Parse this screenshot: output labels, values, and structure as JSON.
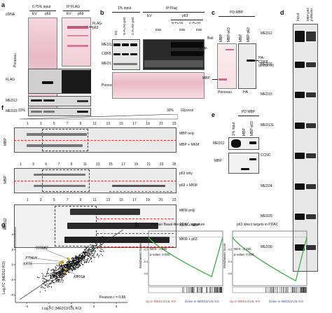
{
  "panel_labels": {
    "a": "a",
    "b": "b",
    "c": "c",
    "d": "d",
    "e": "e",
    "f": "f",
    "g": "g",
    "h": "h"
  },
  "a": {
    "cdna_label": "cDNA",
    "input_header": "0.75% input",
    "ipflag_header": "IP FLAG",
    "lanes_input": [
      "EV",
      "p63"
    ],
    "lanes_ip": [
      "EV",
      "p63"
    ],
    "flag_p63": "FLAG-\np63",
    "rows": [
      "Ponceau",
      "FLAG",
      "MED12",
      "MED23"
    ]
  },
  "b": {
    "input_header": "1% input",
    "ip_header": "IP Flag",
    "lanes_input": [
      "EV",
      "N-FLAG-p63",
      "C-FLAG-p63"
    ],
    "ev_label": "EV",
    "p63_label": "p63",
    "nflag": "N-FLAG",
    "cflag": "C-FLAG",
    "etbr": [
      "-",
      "EtBr",
      "-",
      "EtBr",
      "-",
      "EtBr"
    ],
    "rows": [
      "MED12",
      "CDK8",
      "MED1",
      "Ponceau"
    ]
  },
  "c": {
    "header": "PD MBP",
    "bait_label": "Bait",
    "lanes": [
      "MBP",
      "MBP-p63",
      "MBP",
      "MBP-p63"
    ],
    "mbp_p63": "MBP-\np63",
    "mbp": "MBP",
    "ha_cdk8": "HA-\nCDK8\n(knock-in)",
    "bottom": [
      "Ponceau",
      "HA"
    ]
  },
  "d": {
    "lanes": [
      "Input",
      "MBP-p63 pulldown"
    ],
    "rows": [
      "MED12",
      "MED16",
      "MED15",
      "MED13L",
      "CCNC",
      "MED24",
      "MED25",
      "MED30"
    ]
  },
  "e": {
    "header": "PD MBP",
    "lanes": [
      "1% input",
      "MBP",
      "MBP-p63"
    ],
    "rows": [
      "MED12",
      "MBP"
    ]
  },
  "f": {
    "gradient_left": "10%",
    "gradient_right": "30%",
    "glycerol": "Glycerol",
    "fractions_top": [
      "1",
      "3",
      "5",
      "7",
      "9",
      "11",
      "13",
      "15",
      "17",
      "19",
      "21",
      "23"
    ],
    "fractions_mid": [
      "1",
      "3",
      "5",
      "7",
      "9",
      "11",
      "13",
      "15",
      "17",
      "19",
      "21",
      "23",
      "25"
    ],
    "groups": [
      {
        "side": "MBP",
        "rows": [
          "MBP only",
          "MBP + MKM"
        ]
      },
      {
        "side": "MBP",
        "rows": [
          "p63 only",
          "p63 + MKM"
        ]
      },
      {
        "side": "MED12",
        "rows": [
          "MKM only",
          "MKM + MBP",
          "MKM + p63"
        ]
      }
    ]
  },
  "g": {
    "xlabel": "Log₂FC (MED13/13L KO)",
    "ylabel": "Log₂FC (MED12 KO)",
    "xticks": [
      "-4",
      "-2",
      "0",
      "2",
      "4"
    ],
    "yticks": [
      "4",
      "2",
      "0",
      "-2",
      "-4"
    ],
    "genes": [
      "S100A2",
      "PTHLH",
      "KRT5",
      "KRT6A",
      "FAT2"
    ],
    "pearson": "Pearson r = 0.88"
  },
  "chart_data": [
    {
      "type": "scatter",
      "title": "",
      "xlabel": "Log₂FC (MED13/13L KO)",
      "ylabel": "Log₂FC (MED12 KO)",
      "xlim": [
        -5,
        5
      ],
      "ylim": [
        -5,
        5
      ],
      "highlighted": [
        {
          "label": "S100A2",
          "x": -0.3,
          "y": 0.8
        },
        {
          "label": "PTHLH",
          "x": -0.8,
          "y": 0.4
        },
        {
          "label": "KRT5",
          "x": -1.0,
          "y": 0.2
        },
        {
          "label": "KRT6A",
          "x": -0.5,
          "y": -0.6
        },
        {
          "label": "FAT2",
          "x": -0.6,
          "y": -1.0
        }
      ],
      "annotation": "Pearson r = 0.88"
    },
    {
      "type": "line",
      "title": "Human Basal-like PDAC signature",
      "ylabel": "Enrichment Score",
      "ylim": [
        -0.8,
        0.1
      ],
      "nes": "NES: -1.865",
      "pval": "p-value: 0.000",
      "left_label": "Up in MED13/13L KO",
      "right_label": "Down in MED13/13L KO"
    },
    {
      "type": "line",
      "title": "p63 direct targets in PDAC",
      "ylabel": "Enrichment Score",
      "ylim": [
        -0.8,
        0.1
      ],
      "nes": "NES: -2.255",
      "pval": "p-value: 0.000",
      "left_label": "Up in MED13/13L KO",
      "right_label": "Down in MED13/13L KO"
    }
  ],
  "h": {
    "titles": [
      "Human Basal-like PDAC signature",
      "p63 direct targets in PDAC"
    ],
    "ylabel": "Enrichment Score",
    "nes": [
      "NES: -1.865",
      "NES: -2.255"
    ],
    "pval": [
      "p-value: 0.000",
      "p-value: 0.000"
    ],
    "left_label": "Up in MED13/13L KO",
    "right_label": "Down in MED13/13L KO"
  }
}
